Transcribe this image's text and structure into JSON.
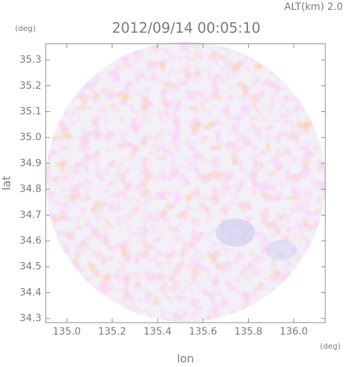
{
  "chart_data": {
    "type": "image",
    "title": "2012/09/14 00:05:10",
    "subtitle": "ALT(km) 2.0",
    "x_label": "lon",
    "y_label": "lat",
    "x_unit": "(deg)",
    "y_unit": "(deg)",
    "xlim": [
      134.907,
      136.139
    ],
    "ylim": [
      34.284,
      35.363
    ],
    "xticks": [
      {
        "value": 135,
        "label": "135.0"
      },
      135.2,
      135.4,
      135.6,
      135.8,
      {
        "value": 136,
        "label": "136.0"
      }
    ],
    "yticks": [
      35.3,
      35.2,
      35.1,
      {
        "value": 35,
        "label": "35.0"
      },
      34.9,
      34.8,
      34.7,
      34.6,
      34.5,
      34.4,
      34.3
    ]
  }
}
